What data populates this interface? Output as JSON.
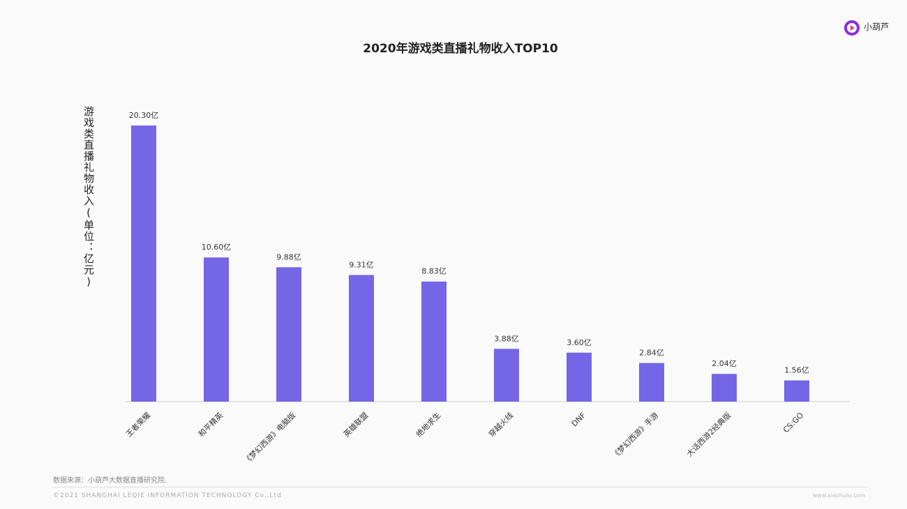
{
  "logo": "小葫芦",
  "chart_data": {
    "type": "bar",
    "title": "2020年游戏类直播礼物收入TOP10",
    "y_label": "游戏类直播礼物收入(单位：亿元)",
    "categories": [
      "王者荣耀",
      "和平精英",
      "《梦幻西游》电脑版",
      "英雄联盟",
      "绝地求生",
      "穿越火线",
      "DNF",
      "《梦幻西游》手游",
      "大话西游2经典版",
      "CS:GO"
    ],
    "values": [
      20.3,
      10.6,
      9.88,
      9.31,
      8.83,
      3.88,
      3.6,
      2.84,
      2.04,
      1.56
    ],
    "value_labels": [
      "20.30亿",
      "10.60亿",
      "9.88亿",
      "9.31亿",
      "8.83亿",
      "3.88亿",
      "3.60亿",
      "2.84亿",
      "2.04亿",
      "1.56亿"
    ],
    "color": "#7466e6"
  },
  "footer": {
    "source": "数据来源：小葫芦大数据直播研究院.",
    "copyright": "©2021 SHANGHAI LEQIE INFORMATION TECHNOLOGY Co.,Ltd",
    "site": "www.xiaohulu.com"
  }
}
